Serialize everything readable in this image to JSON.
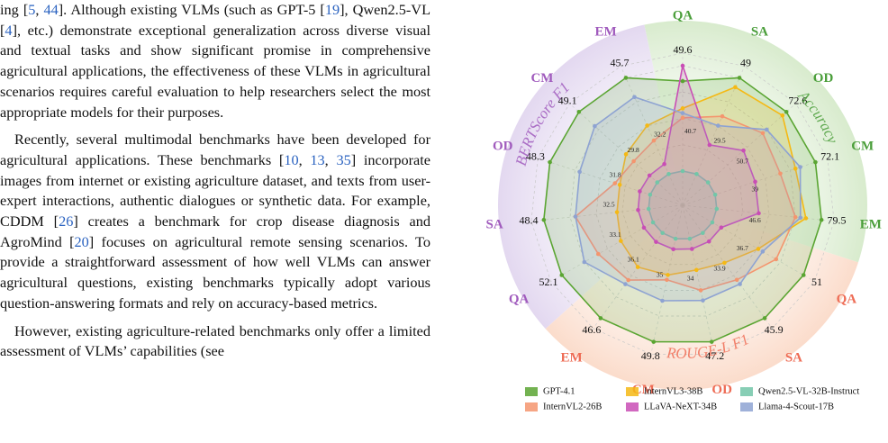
{
  "body": {
    "paragraphs": [
      [
        "ing [",
        "5",
        ", ",
        "44",
        "]. Although existing VLMs (such as GPT-5 [",
        "19",
        "], Qwen2.5-VL [",
        "4",
        "], etc.) demonstrate exceptional generalization across diverse visual and textual tasks and show significant promise in comprehensive agricultural applications, the effectiveness of these VLMs in agricultural scenarios requires careful evaluation to help researchers select the most appropriate models for their purposes."
      ],
      [
        "Recently, several multimodal benchmarks have been developed for agricultural applications.  These benchmarks [",
        "10",
        ", ",
        "13",
        ", ",
        "35",
        "] incorporate images from internet or existing agriculture dataset, and texts from user-expert interactions, authentic dialogues or synthetic data. For example, CDDM [",
        "26",
        "] creates a benchmark for crop disease diagnosis and AgroMind [",
        "20",
        "] focuses on agricultural remote sensing scenarios. To provide a straightforward assessment of how well VLMs can answer agricultural questions, existing benchmarks typically adopt various question-answering formats and rely on accuracy-based metrics."
      ],
      [
        "However, existing agriculture-related benchmarks only offer a limited assessment of VLMs’ capabilities (see"
      ]
    ]
  },
  "chart_data": {
    "type": "radar",
    "groups": [
      {
        "name": "Accuracy",
        "color": "#4a9e3a",
        "axes": [
          {
            "label": "QA",
            "max": 49.6,
            "min": 40.7
          },
          {
            "label": "SA",
            "max": 49.0,
            "min": 29.5
          },
          {
            "label": "OD",
            "max": 72.6,
            "min": 50.7
          },
          {
            "label": "CM",
            "max": 72.1,
            "min": 39.0
          },
          {
            "label": "EM",
            "max": 79.5,
            "min": 46.6
          }
        ]
      },
      {
        "name": "ROUGE-L F1",
        "color": "#ee6c55",
        "axes": [
          {
            "label": "QA",
            "max": 51.0,
            "min": 36.7
          },
          {
            "label": "SA",
            "max": 45.9,
            "min": 33.9
          },
          {
            "label": "OD",
            "max": 47.2,
            "min": 34.0
          },
          {
            "label": "CM",
            "max": 49.8,
            "min": 35.0
          },
          {
            "label": "EM",
            "max": 46.6,
            "min": 36.1
          }
        ]
      },
      {
        "name": "BERTScore F1",
        "color": "#a05bbd",
        "axes": [
          {
            "label": "QA",
            "max": 52.1,
            "min": 33.1
          },
          {
            "label": "SA",
            "max": 48.4,
            "min": 32.5
          },
          {
            "label": "OD",
            "max": 48.3,
            "min": 31.8
          },
          {
            "label": "CM",
            "max": 49.1,
            "min": 29.8
          },
          {
            "label": "EM",
            "max": 45.7,
            "min": 32.2
          }
        ]
      }
    ],
    "series": [
      {
        "name": "GPT-4.1",
        "color": "#5aa532",
        "values": [
          48.3,
          49.0,
          72.6,
          72.1,
          79.5,
          51.0,
          45.9,
          47.2,
          49.8,
          46.6,
          52.1,
          48.4,
          48.3,
          49.1,
          45.7
        ]
      },
      {
        "name": "InternVL3-38B",
        "color": "#f5b914",
        "values": [
          46.0,
          47.1,
          71.5,
          65.5,
          74.6,
          43.9,
          38.1,
          38.0,
          40.2,
          40.3,
          39.8,
          37.3,
          36.8,
          37.5,
          39.0
        ]
      },
      {
        "name": "Qwen2.5-VL-32B-Instruct",
        "color": "#72c6a8",
        "values": [
          40.7,
          29.5,
          50.7,
          39.0,
          46.6,
          36.7,
          33.9,
          34.0,
          35.0,
          36.1,
          33.1,
          32.5,
          31.8,
          29.8,
          32.2
        ]
      },
      {
        "name": "InternVL2-26B",
        "color": "#f4956e",
        "values": [
          45.2,
          41.2,
          66.0,
          60.5,
          71.3,
          46.7,
          40.5,
          40.6,
          40.9,
          41.9,
          44.5,
          43.6,
          37.6,
          35.6,
          36.9
        ]
      },
      {
        "name": "LLaVA-NeXT-34B",
        "color": "#c94db5",
        "values": [
          49.6,
          35.4,
          60.6,
          52.2,
          59.8,
          38.1,
          35.1,
          35.3,
          36.5,
          37.2,
          35.0,
          34.1,
          33.5,
          31.7,
          33.6
        ]
      },
      {
        "name": "Llama-4-Scout-17B",
        "color": "#8ea3d2",
        "values": [
          45.6,
          39.3,
          67.1,
          67.1,
          72.9,
          44.6,
          41.1,
          41.9,
          43.9,
          42.4,
          47.4,
          43.6,
          43.4,
          45.2,
          43.0
        ]
      }
    ]
  }
}
